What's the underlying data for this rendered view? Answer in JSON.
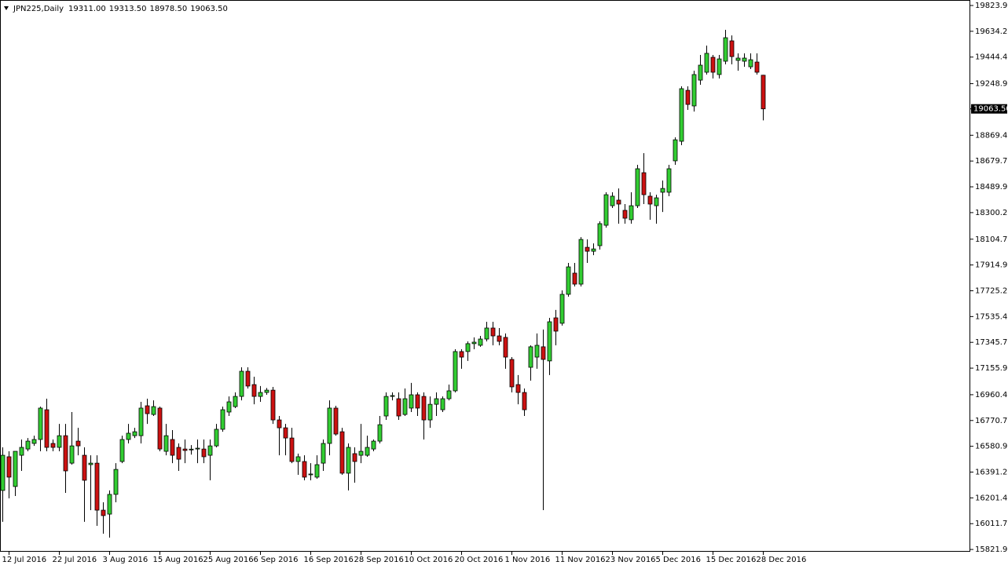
{
  "chart_data": {
    "type": "candlestick",
    "title": "JPN225,Daily",
    "header_values": [
      {
        "value": 19311,
        "label": "19311.00"
      },
      {
        "value": 19313.5,
        "label": "19313.50"
      },
      {
        "value": 18978.5,
        "label": "18978.50"
      },
      {
        "value": 19063.5,
        "label": "19063.50"
      }
    ],
    "last_price": {
      "value": 19063.5,
      "label": "19063.50"
    },
    "categories": [
      null,
      "12 Jul 2016",
      null,
      null,
      null,
      null,
      null,
      null,
      null,
      "22 Jul 2016",
      null,
      null,
      null,
      null,
      null,
      null,
      null,
      "3 Aug 2016",
      null,
      null,
      null,
      null,
      null,
      null,
      null,
      "15 Aug 2016",
      null,
      null,
      null,
      null,
      null,
      null,
      null,
      "25 Aug 2016",
      null,
      null,
      null,
      null,
      null,
      null,
      null,
      "6 Sep 2016",
      null,
      null,
      null,
      null,
      null,
      null,
      null,
      "16 Sep 2016",
      null,
      null,
      null,
      null,
      null,
      null,
      null,
      "28 Sep 2016",
      null,
      null,
      null,
      null,
      null,
      null,
      null,
      "10 Oct 2016",
      null,
      null,
      null,
      null,
      null,
      null,
      null,
      "20 Oct 2016",
      null,
      null,
      null,
      null,
      null,
      null,
      null,
      "1 Nov 2016",
      null,
      null,
      null,
      null,
      null,
      null,
      null,
      "11 Nov 2016",
      null,
      null,
      null,
      null,
      null,
      null,
      null,
      "23 Nov 2016",
      null,
      null,
      null,
      null,
      null,
      null,
      null,
      "5 Dec 2016",
      null,
      null,
      null,
      null,
      null,
      null,
      null,
      "15 Dec 2016",
      null,
      null,
      null,
      null,
      null,
      null,
      null,
      "28 Dec 2016"
    ],
    "open": [
      16256,
      16504,
      16285,
      16515,
      16561,
      16602,
      16631,
      16850,
      16602,
      16573,
      16659,
      16457,
      16619,
      16515,
      16446,
      16457,
      16111,
      16082,
      16227,
      16469,
      16631,
      16659,
      16659,
      16879,
      16815,
      16862,
      16544,
      16631,
      16573,
      16561,
      16555,
      16561,
      16561,
      16515,
      16584,
      16706,
      16833,
      16873,
      16948,
      17133,
      17035,
      16948,
      16977,
      16994,
      16775,
      16717,
      16642,
      16469,
      16469,
      16371,
      16354,
      16457,
      16602,
      16862,
      16688,
      16383,
      16527,
      16515,
      16515,
      16561,
      16619,
      16804,
      16948,
      16931,
      16815,
      16862,
      16960,
      16948,
      16775,
      16890,
      16850,
      16931,
      16989,
      17278,
      17278,
      17336,
      17324,
      17370,
      17451,
      17393,
      17382,
      17220,
      17035,
      16977,
      17162,
      17237,
      17313,
      17209,
      17526,
      17486,
      17699,
      17855,
      17774,
      18045,
      18016,
      18057,
      18207,
      18351,
      18392,
      18317,
      18248,
      18351,
      18594,
      18421,
      18351,
      18450,
      18450,
      18681,
      18825,
      19200,
      19085,
      19275,
      19333,
      19443,
      19316,
      19414,
      19564,
      19420,
      19414,
      19373,
      19408,
      19311
    ],
    "high": [
      16573,
      16544,
      16544,
      16631,
      16642,
      16659,
      16873,
      16931,
      16631,
      16746,
      16746,
      16833,
      16717,
      16573,
      16515,
      16515,
      16169,
      16256,
      16457,
      16659,
      16746,
      16717,
      16908,
      16931,
      16919,
      16873,
      16746,
      16700,
      16602,
      16631,
      16590,
      16631,
      16631,
      16631,
      16746,
      16873,
      16948,
      16977,
      17162,
      17162,
      17093,
      17024,
      17010,
      17018,
      16804,
      16746,
      16717,
      16527,
      16515,
      16457,
      16515,
      16631,
      16919,
      16879,
      16717,
      16602,
      16573,
      16746,
      16659,
      16631,
      16804,
      16977,
      16977,
      16977,
      17006,
      17047,
      16977,
      16977,
      16948,
      16977,
      16948,
      17035,
      17295,
      17295,
      17353,
      17382,
      17393,
      17497,
      17497,
      17451,
      17411,
      17237,
      17105,
      17006,
      17324,
      17411,
      17440,
      17526,
      17584,
      17728,
      17930,
      17930,
      18120,
      18103,
      18074,
      18236,
      18450,
      18450,
      18478,
      18363,
      18450,
      18652,
      18738,
      18450,
      18432,
      18536,
      18652,
      18854,
      19229,
      19229,
      19344,
      19460,
      19529,
      19460,
      19460,
      19645,
      19604,
      19472,
      19472,
      19472,
      19472,
      19313.5
    ],
    "low": [
      16025,
      16198,
      16215,
      16400,
      16544,
      16584,
      16544,
      16544,
      16544,
      16544,
      16238,
      16446,
      16515,
      16025,
      16111,
      15996,
      15938,
      15909,
      16169,
      16457,
      16602,
      16642,
      16602,
      16746,
      16804,
      16544,
      16515,
      16457,
      16400,
      16457,
      16520,
      16457,
      16457,
      16331,
      16573,
      16688,
      16804,
      16862,
      16919,
      17006,
      16890,
      16908,
      16960,
      16746,
      16515,
      16515,
      16457,
      16371,
      16331,
      16331,
      16342,
      16400,
      16515,
      16659,
      16371,
      16256,
      16313,
      16457,
      16504,
      16544,
      16602,
      16775,
      16919,
      16775,
      16804,
      16833,
      16804,
      16631,
      16717,
      16804,
      16833,
      16919,
      16977,
      17151,
      17209,
      17295,
      17313,
      17353,
      17324,
      17324,
      17151,
      16977,
      16890,
      16804,
      17064,
      17151,
      16111,
      17105,
      17324,
      17469,
      17682,
      17757,
      17757,
      17930,
      17987,
      18028,
      18190,
      18334,
      18219,
      18219,
      18219,
      18334,
      18363,
      18248,
      18219,
      18305,
      18421,
      18652,
      18796,
      19056,
      19044,
      19241,
      19316,
      19287,
      19287,
      19391,
      19391,
      19344,
      19373,
      19356,
      19316,
      18978.5
    ],
    "close": [
      16515,
      16354,
      16544,
      16573,
      16619,
      16631,
      16862,
      16573,
      16573,
      16659,
      16400,
      16584,
      16584,
      16331,
      16457,
      16111,
      16071,
      16227,
      16411,
      16631,
      16677,
      16688,
      16862,
      16821,
      16873,
      16561,
      16659,
      16515,
      16486,
      16550,
      16560,
      16567,
      16504,
      16584,
      16706,
      16850,
      16908,
      16948,
      17133,
      17024,
      16948,
      16977,
      16994,
      16775,
      16717,
      16642,
      16469,
      16504,
      16354,
      16377,
      16446,
      16602,
      16862,
      16671,
      16383,
      16573,
      16469,
      16544,
      16573,
      16619,
      16740,
      16948,
      16954,
      16804,
      16931,
      16960,
      16862,
      16775,
      16890,
      16931,
      16931,
      16989,
      17278,
      17237,
      17336,
      17347,
      17370,
      17451,
      17393,
      17353,
      17237,
      17018,
      16977,
      16850,
      17313,
      17324,
      17220,
      17497,
      17428,
      17699,
      17901,
      17774,
      18103,
      18016,
      18033,
      18219,
      18432,
      18421,
      18363,
      18259,
      18351,
      18623,
      18432,
      18363,
      18409,
      18478,
      18623,
      18836,
      19212,
      19096,
      19316,
      19385,
      19472,
      19333,
      19431,
      19587,
      19448,
      19437,
      19437,
      19425,
      19333,
      19063.5
    ],
    "up_color": "#32cd32",
    "down_color": "#cc1111",
    "wick_color": "#000000",
    "ylim": [
      15805.2,
      19864.4
    ],
    "yticks": [
      {
        "value": 19823.95,
        "label": "19823.95"
      },
      {
        "value": 19634.2,
        "label": "19634.20"
      },
      {
        "value": 19444.45,
        "label": "19444.45"
      },
      {
        "value": 19248.95,
        "label": "19248.95"
      },
      {
        "value": 18869.45,
        "label": "18869.45"
      },
      {
        "value": 18679.7,
        "label": "18679.70"
      },
      {
        "value": 18489.95,
        "label": "18489.95"
      },
      {
        "value": 18300.2,
        "label": "18300.20"
      },
      {
        "value": 18104.7,
        "label": "18104.70"
      },
      {
        "value": 17914.95,
        "label": "17914.95"
      },
      {
        "value": 17725.2,
        "label": "17725.20"
      },
      {
        "value": 17535.45,
        "label": "17535.45"
      },
      {
        "value": 17345.7,
        "label": "17345.70"
      },
      {
        "value": 17155.95,
        "label": "17155.95"
      },
      {
        "value": 16960.45,
        "label": "16960.45"
      },
      {
        "value": 16770.7,
        "label": "16770.70"
      },
      {
        "value": 16580.95,
        "label": "16580.95"
      },
      {
        "value": 16391.2,
        "label": "16391.20"
      },
      {
        "value": 16201.45,
        "label": "16201.45"
      },
      {
        "value": 16011.7,
        "label": "16011.70"
      },
      {
        "value": 15821.95,
        "label": "15821.95"
      }
    ],
    "grid": false
  }
}
